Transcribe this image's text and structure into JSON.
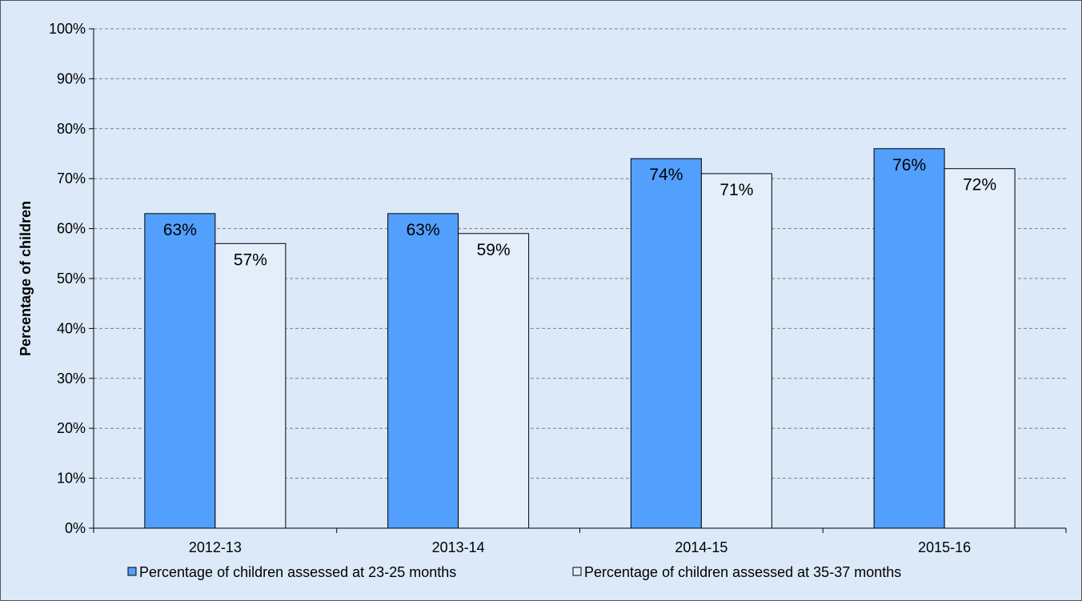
{
  "chart_data": {
    "type": "bar",
    "title": "",
    "xlabel": "",
    "ylabel": "Percentage of children",
    "ylim": [
      0,
      100
    ],
    "yticks": [
      "0%",
      "10%",
      "20%",
      "30%",
      "40%",
      "50%",
      "60%",
      "70%",
      "80%",
      "90%",
      "100%"
    ],
    "categories": [
      "2012-13",
      "2013-14",
      "2014-15",
      "2015-16"
    ],
    "series": [
      {
        "name": "Percentage of children assessed at 23-25 months",
        "values": [
          63,
          63,
          74,
          76
        ],
        "labels": [
          "63%",
          "63%",
          "74%",
          "76%"
        ],
        "color": "#539ffd"
      },
      {
        "name": "Percentage of children assessed at 35-37 months",
        "values": [
          57,
          59,
          71,
          72
        ],
        "labels": [
          "57%",
          "59%",
          "71%",
          "72%"
        ],
        "color": "#e4eefb"
      }
    ],
    "grid": true,
    "legend": "bottom",
    "background": "#dbe9f9"
  }
}
